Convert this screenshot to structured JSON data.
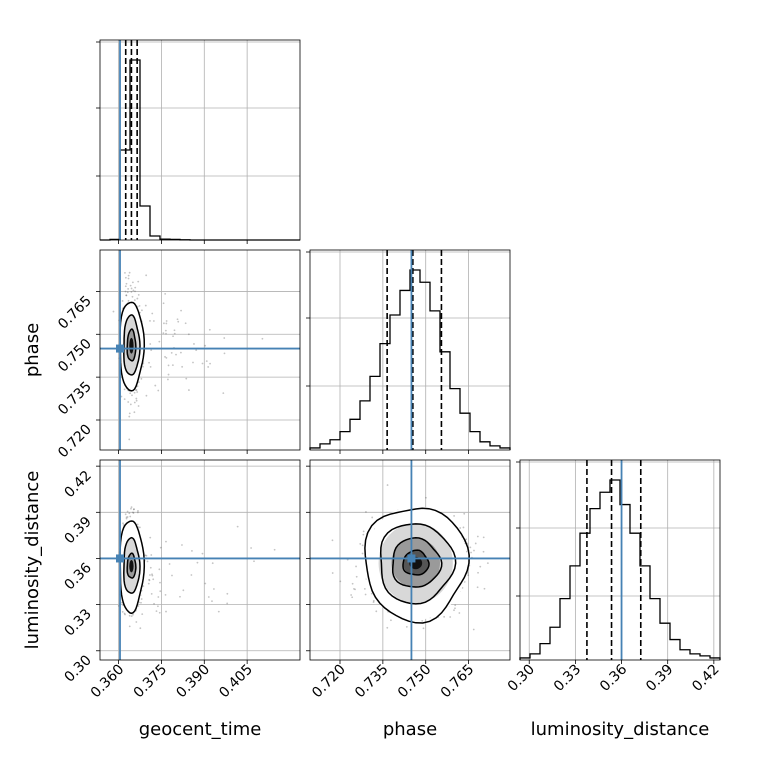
{
  "chart_data": {
    "type": "corner",
    "parameters": [
      "geocent_time",
      "phase",
      "luminosity_distance"
    ],
    "truths": {
      "geocent_time": 0.3605,
      "phase": 0.745,
      "luminosity_distance": 0.36
    },
    "truth_color": "#4682b4",
    "ranges": {
      "geocent_time": [
        0.3535,
        0.4235
      ],
      "phase": [
        0.7095,
        0.7795
      ],
      "luminosity_distance": [
        0.294,
        0.424
      ]
    },
    "ticks": {
      "geocent_time": [
        0.36,
        0.375,
        0.39,
        0.405
      ],
      "phase": [
        0.72,
        0.735,
        0.75,
        0.765
      ],
      "luminosity_distance": [
        0.3,
        0.33,
        0.36,
        0.39,
        0.42
      ]
    },
    "tick_labels": {
      "geocent_time": [
        "0.360",
        "0.375",
        "0.390",
        "0.405"
      ],
      "phase": [
        "0.720",
        "0.735",
        "0.750",
        "0.765"
      ],
      "luminosity_distance": [
        "0.30",
        "0.33",
        "0.36",
        "0.39",
        "0.42"
      ]
    },
    "axis_labels": {
      "x": [
        "geocent_time",
        "phase",
        "luminosity_distance"
      ],
      "y": [
        "",
        "phase",
        "luminosity_distance"
      ]
    },
    "histograms": {
      "geocent_time": {
        "quantiles": [
          0.3625,
          0.3645,
          0.3665
        ],
        "bins": [
          [
            0.3535,
            0.357,
            0.0
          ],
          [
            0.357,
            0.3605,
            0.3
          ],
          [
            0.3605,
            0.364,
            45.0
          ],
          [
            0.364,
            0.3675,
            90.0
          ],
          [
            0.3675,
            0.371,
            17.0
          ],
          [
            0.371,
            0.3745,
            2.0
          ],
          [
            0.3745,
            0.378,
            0.4
          ],
          [
            0.378,
            0.3815,
            0.3
          ],
          [
            0.3815,
            0.385,
            0.1
          ],
          [
            0.385,
            0.4235,
            0.0
          ]
        ]
      },
      "phase": {
        "quantiles": [
          0.7365,
          0.7455,
          0.7555
        ],
        "bins": [
          [
            0.7095,
            0.713,
            1
          ],
          [
            0.713,
            0.7165,
            3
          ],
          [
            0.7165,
            0.72,
            5
          ],
          [
            0.72,
            0.7235,
            9
          ],
          [
            0.7235,
            0.727,
            15
          ],
          [
            0.727,
            0.7305,
            24
          ],
          [
            0.7305,
            0.734,
            36
          ],
          [
            0.734,
            0.7375,
            52
          ],
          [
            0.7375,
            0.741,
            66
          ],
          [
            0.741,
            0.7445,
            78
          ],
          [
            0.7445,
            0.748,
            88
          ],
          [
            0.748,
            0.7515,
            82
          ],
          [
            0.7515,
            0.755,
            68
          ],
          [
            0.755,
            0.7585,
            48
          ],
          [
            0.7585,
            0.762,
            30
          ],
          [
            0.762,
            0.7655,
            18
          ],
          [
            0.7655,
            0.769,
            9
          ],
          [
            0.769,
            0.7725,
            4
          ],
          [
            0.7725,
            0.776,
            2
          ],
          [
            0.776,
            0.7795,
            1
          ]
        ]
      },
      "luminosity_distance": {
        "quantiles": [
          0.3375,
          0.3535,
          0.3725
        ],
        "bins": [
          [
            0.294,
            0.3005,
            1
          ],
          [
            0.3005,
            0.307,
            3
          ],
          [
            0.307,
            0.3135,
            8
          ],
          [
            0.3135,
            0.32,
            16
          ],
          [
            0.32,
            0.3265,
            30
          ],
          [
            0.3265,
            0.333,
            46
          ],
          [
            0.333,
            0.3395,
            62
          ],
          [
            0.3395,
            0.346,
            74
          ],
          [
            0.346,
            0.3525,
            82
          ],
          [
            0.3525,
            0.359,
            88
          ],
          [
            0.359,
            0.3655,
            76
          ],
          [
            0.3655,
            0.372,
            62
          ],
          [
            0.372,
            0.3785,
            46
          ],
          [
            0.3785,
            0.385,
            30
          ],
          [
            0.385,
            0.3915,
            18
          ],
          [
            0.3915,
            0.398,
            10
          ],
          [
            0.398,
            0.4045,
            5
          ],
          [
            0.4045,
            0.411,
            3
          ],
          [
            0.411,
            0.4175,
            2
          ],
          [
            0.4175,
            0.424,
            1
          ]
        ]
      }
    },
    "joint": {
      "phase_vs_geocent_time": {
        "center": [
          0.3645,
          0.746
        ],
        "spread": [
          0.0015,
          0.0085
        ],
        "contour_radii": [
          [
            0.0015,
            0.0055
          ],
          [
            0.0028,
            0.0105
          ],
          [
            0.0042,
            0.0155
          ]
        ]
      },
      "luminosity_distance_vs_geocent_time": {
        "center": [
          0.3645,
          0.355
        ],
        "spread": [
          0.0015,
          0.014
        ],
        "contour_radii": [
          [
            0.0015,
            0.008
          ],
          [
            0.0028,
            0.018
          ],
          [
            0.0042,
            0.03
          ]
        ]
      },
      "luminosity_distance_vs_phase": {
        "center": [
          0.7465,
          0.357
        ],
        "spread": [
          0.0085,
          0.014
        ],
        "contour_radii": [
          [
            0.0045,
            0.008
          ],
          [
            0.0085,
            0.016
          ],
          [
            0.013,
            0.026
          ],
          [
            0.018,
            0.037
          ]
        ]
      }
    },
    "grid": true
  }
}
